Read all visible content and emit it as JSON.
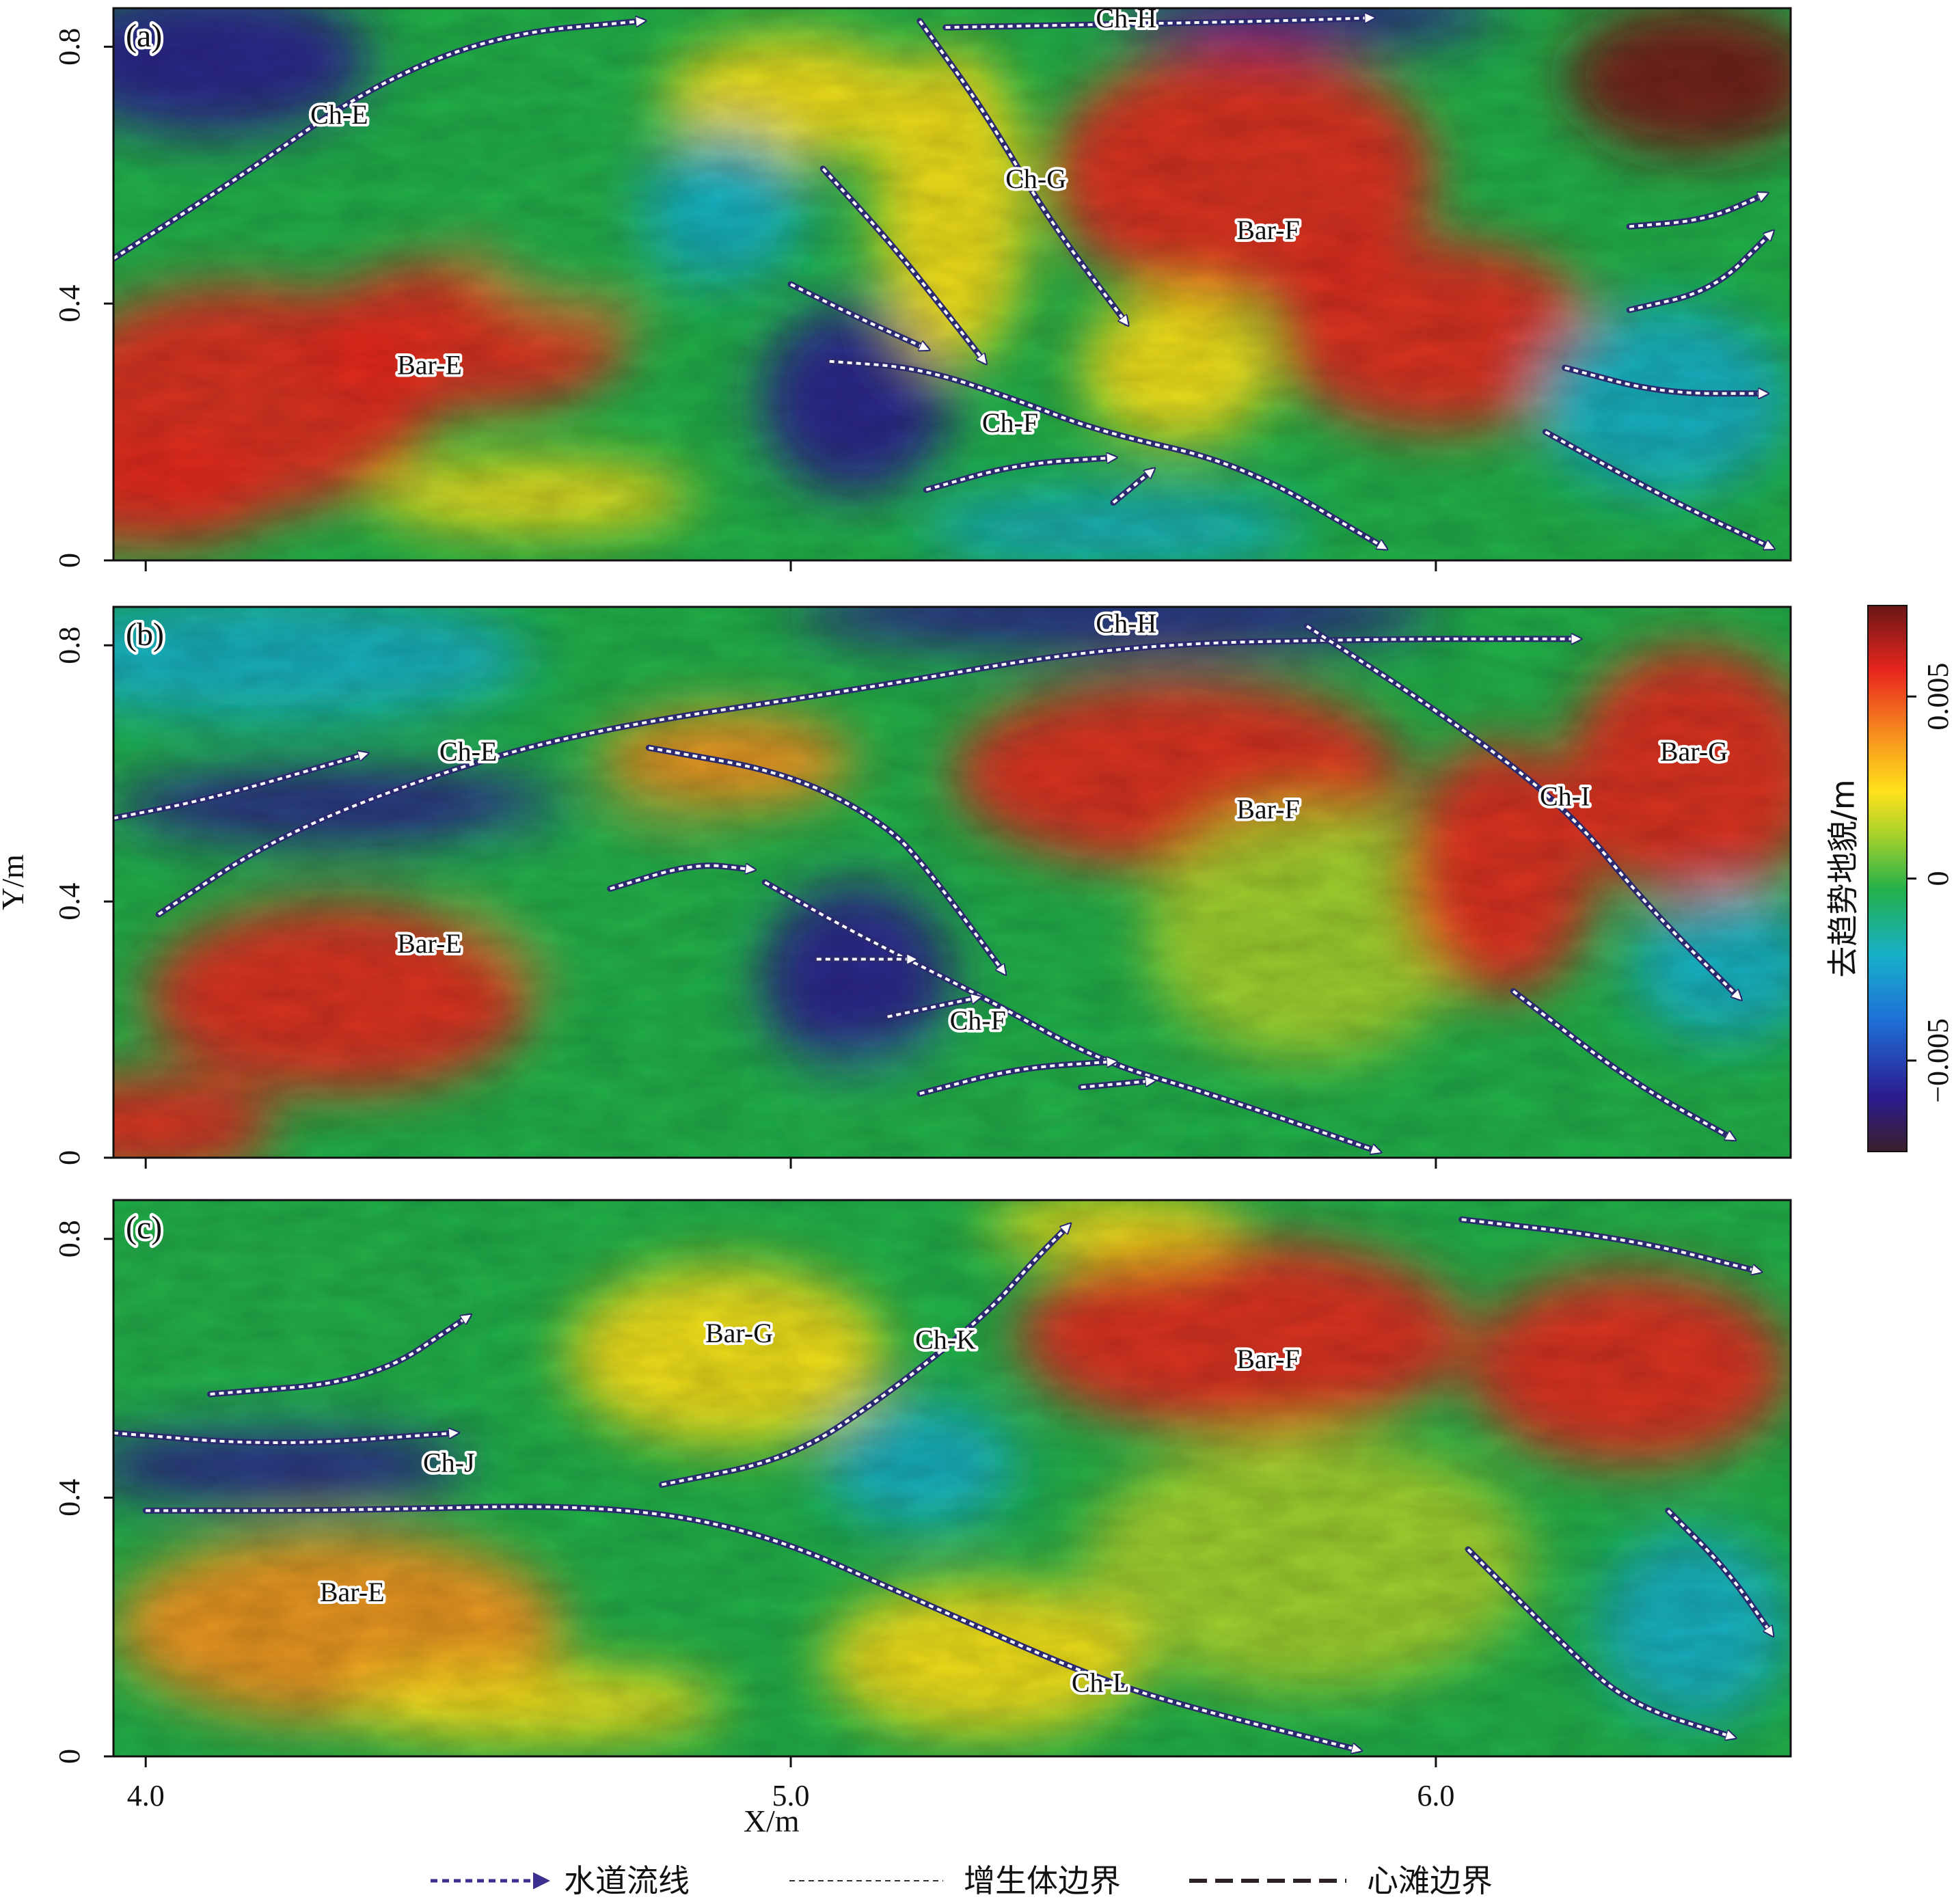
{
  "chart_data": {
    "type": "heatmap",
    "xlabel": "X/m",
    "ylabel": "Y/m",
    "xlim": [
      3.95,
      6.55
    ],
    "ylim": [
      0,
      0.86
    ],
    "xticks": [
      {
        "value": 4.0,
        "label": "4.0"
      },
      {
        "value": 5.0,
        "label": "5.0"
      },
      {
        "value": 6.0,
        "label": "6.0"
      }
    ],
    "yticks": [
      {
        "value": 0,
        "label": "0"
      },
      {
        "value": 0.4,
        "label": "0.4"
      },
      {
        "value": 0.8,
        "label": "0.8"
      }
    ],
    "colorbar": {
      "title": "去趋势地貌/m",
      "range": [
        -0.0075,
        0.0075
      ],
      "ticks": [
        {
          "value": 0.005,
          "label": "0.005"
        },
        {
          "value": 0,
          "label": "0"
        },
        {
          "value": -0.005,
          "label": "−0.005"
        }
      ],
      "colors": [
        "#3b1f2b",
        "#2b1b8f",
        "#1e6fd6",
        "#18b0c8",
        "#22b04a",
        "#a8d12c",
        "#ffe21a",
        "#f7921e",
        "#e8261e",
        "#7a1a1a"
      ]
    },
    "panels": [
      {
        "tag": "(a)",
        "labels": [
          {
            "text": "Ch-E",
            "x": 4.3,
            "y": 0.68
          },
          {
            "text": "Ch-H",
            "x": 5.52,
            "y": 0.83
          },
          {
            "text": "Ch-G",
            "x": 5.38,
            "y": 0.58
          },
          {
            "text": "Bar-F",
            "x": 5.74,
            "y": 0.5
          },
          {
            "text": "Bar-E",
            "x": 4.44,
            "y": 0.29
          },
          {
            "text": "Ch-F",
            "x": 5.34,
            "y": 0.2
          }
        ],
        "streamlines": [
          [
            [
              3.95,
              0.47
            ],
            [
              4.15,
              0.6
            ],
            [
              4.35,
              0.74
            ],
            [
              4.55,
              0.82
            ],
            [
              4.77,
              0.84
            ]
          ],
          [
            [
              5.24,
              0.83
            ],
            [
              5.5,
              0.835
            ],
            [
              5.75,
              0.84
            ],
            [
              5.9,
              0.845
            ]
          ],
          [
            [
              5.2,
              0.84
            ],
            [
              5.3,
              0.7
            ],
            [
              5.4,
              0.53
            ],
            [
              5.52,
              0.37
            ]
          ],
          [
            [
              5.05,
              0.61
            ],
            [
              5.15,
              0.5
            ],
            [
              5.23,
              0.4
            ],
            [
              5.3,
              0.31
            ]
          ],
          [
            [
              5.0,
              0.43
            ],
            [
              5.1,
              0.38
            ],
            [
              5.21,
              0.33
            ]
          ],
          [
            [
              5.06,
              0.31
            ],
            [
              5.2,
              0.3
            ],
            [
              5.35,
              0.25
            ],
            [
              5.48,
              0.2
            ],
            [
              5.7,
              0.15
            ],
            [
              5.92,
              0.02
            ]
          ],
          [
            [
              5.21,
              0.11
            ],
            [
              5.35,
              0.15
            ],
            [
              5.5,
              0.16
            ]
          ],
          [
            [
              5.5,
              0.09
            ],
            [
              5.56,
              0.14
            ]
          ],
          [
            [
              6.3,
              0.52
            ],
            [
              6.42,
              0.53
            ],
            [
              6.51,
              0.57
            ]
          ],
          [
            [
              6.3,
              0.39
            ],
            [
              6.43,
              0.42
            ],
            [
              6.52,
              0.51
            ]
          ],
          [
            [
              6.2,
              0.3
            ],
            [
              6.35,
              0.26
            ],
            [
              6.51,
              0.26
            ]
          ],
          [
            [
              6.17,
              0.2
            ],
            [
              6.35,
              0.1
            ],
            [
              6.52,
              0.02
            ]
          ]
        ]
      },
      {
        "tag": "(b)",
        "labels": [
          {
            "text": "Ch-H",
            "x": 5.52,
            "y": 0.82
          },
          {
            "text": "Ch-E",
            "x": 4.5,
            "y": 0.62
          },
          {
            "text": "Bar-G",
            "x": 6.4,
            "y": 0.62
          },
          {
            "text": "Bar-F",
            "x": 5.74,
            "y": 0.53
          },
          {
            "text": "Ch-I",
            "x": 6.2,
            "y": 0.55
          },
          {
            "text": "Bar-E",
            "x": 4.44,
            "y": 0.32
          },
          {
            "text": "Ch-F",
            "x": 5.29,
            "y": 0.2
          }
        ],
        "streamlines": [
          [
            [
              3.95,
              0.53
            ],
            [
              4.1,
              0.56
            ],
            [
              4.34,
              0.63
            ]
          ],
          [
            [
              4.02,
              0.38
            ],
            [
              4.2,
              0.5
            ],
            [
              4.45,
              0.6
            ],
            [
              4.7,
              0.67
            ],
            [
              5.1,
              0.73
            ],
            [
              5.5,
              0.8
            ],
            [
              5.9,
              0.81
            ],
            [
              6.22,
              0.81
            ]
          ],
          [
            [
              4.78,
              0.64
            ],
            [
              5.0,
              0.6
            ],
            [
              5.15,
              0.52
            ],
            [
              5.22,
              0.44
            ],
            [
              5.33,
              0.29
            ]
          ],
          [
            [
              4.72,
              0.42
            ],
            [
              4.85,
              0.46
            ],
            [
              4.94,
              0.45
            ]
          ],
          [
            [
              4.96,
              0.43
            ],
            [
              5.1,
              0.35
            ],
            [
              5.3,
              0.25
            ],
            [
              5.48,
              0.15
            ],
            [
              5.65,
              0.1
            ],
            [
              5.91,
              0.01
            ]
          ],
          [
            [
              5.04,
              0.31
            ],
            [
              5.19,
              0.31
            ]
          ],
          [
            [
              5.15,
              0.22
            ],
            [
              5.29,
              0.25
            ]
          ],
          [
            [
              5.2,
              0.1
            ],
            [
              5.35,
              0.14
            ],
            [
              5.5,
              0.15
            ]
          ],
          [
            [
              5.45,
              0.11
            ],
            [
              5.56,
              0.12
            ]
          ],
          [
            [
              5.8,
              0.83
            ],
            [
              6.0,
              0.7
            ],
            [
              6.2,
              0.55
            ],
            [
              6.33,
              0.39
            ],
            [
              6.47,
              0.25
            ]
          ],
          [
            [
              6.12,
              0.26
            ],
            [
              6.3,
              0.12
            ],
            [
              6.46,
              0.03
            ]
          ]
        ]
      },
      {
        "tag": "(c)",
        "labels": [
          {
            "text": "Bar-G",
            "x": 4.92,
            "y": 0.64
          },
          {
            "text": "Ch-K",
            "x": 5.24,
            "y": 0.63
          },
          {
            "text": "Bar-F",
            "x": 5.74,
            "y": 0.6
          },
          {
            "text": "Ch-J",
            "x": 4.47,
            "y": 0.44
          },
          {
            "text": "Bar-E",
            "x": 4.32,
            "y": 0.24
          },
          {
            "text": "Ch-L",
            "x": 5.48,
            "y": 0.1
          }
        ],
        "streamlines": [
          [
            [
              4.1,
              0.56
            ],
            [
              4.35,
              0.58
            ],
            [
              4.5,
              0.68
            ]
          ],
          [
            [
              3.95,
              0.5
            ],
            [
              4.2,
              0.48
            ],
            [
              4.48,
              0.5
            ]
          ],
          [
            [
              4.8,
              0.42
            ],
            [
              5.0,
              0.46
            ],
            [
              5.15,
              0.56
            ],
            [
              5.3,
              0.68
            ],
            [
              5.38,
              0.77
            ],
            [
              5.43,
              0.82
            ]
          ],
          [
            [
              4.0,
              0.38
            ],
            [
              4.3,
              0.38
            ],
            [
              4.7,
              0.39
            ],
            [
              4.95,
              0.35
            ],
            [
              5.2,
              0.24
            ],
            [
              5.45,
              0.13
            ],
            [
              5.6,
              0.08
            ],
            [
              5.88,
              0.01
            ]
          ],
          [
            [
              6.04,
              0.83
            ],
            [
              6.3,
              0.8
            ],
            [
              6.5,
              0.75
            ]
          ],
          [
            [
              6.36,
              0.38
            ],
            [
              6.45,
              0.29
            ],
            [
              6.52,
              0.19
            ]
          ],
          [
            [
              6.05,
              0.32
            ],
            [
              6.2,
              0.17
            ],
            [
              6.3,
              0.08
            ],
            [
              6.46,
              0.03
            ]
          ]
        ]
      }
    ],
    "legend": [
      {
        "style": "streamline",
        "label": "水道流线"
      },
      {
        "style": "accretion",
        "label": "增生体边界"
      },
      {
        "style": "bar",
        "label": "心滩边界"
      }
    ]
  }
}
